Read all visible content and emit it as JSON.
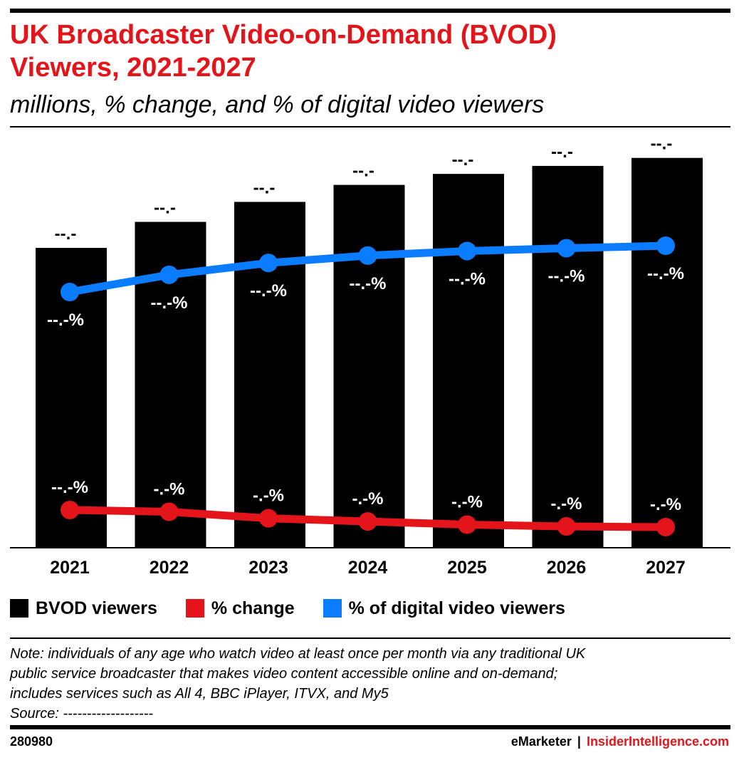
{
  "title_line1": "UK Broadcaster Video-on-Demand (BVOD)",
  "title_line2": "Viewers, 2021-2027",
  "subtitle": "millions, % change, and % of digital video viewers",
  "chart_data": {
    "type": "bar",
    "categories": [
      "2021",
      "2022",
      "2023",
      "2024",
      "2025",
      "2026",
      "2027"
    ],
    "ylim": [
      0,
      45
    ],
    "grid": false,
    "legend_position": "bottom",
    "series": [
      {
        "name": "BVOD viewers",
        "type": "bar",
        "color": "#000000",
        "values": [
          30.0,
          32.6,
          34.6,
          36.3,
          37.4,
          38.2,
          39.0
        ],
        "labels": [
          "--.-",
          "--.-",
          "--.-",
          "--.-",
          "--.-",
          "--.-",
          "--.-"
        ]
      },
      {
        "name": "% of digital video viewers",
        "type": "line",
        "color": "#0a7cff",
        "values": [
          80.0,
          84.2,
          87.1,
          88.9,
          90.0,
          90.7,
          91.3
        ],
        "labels": [
          "--.-%",
          "--.-%",
          "--.-%",
          "--.-%",
          "--.-%",
          "--.-%",
          "--.-%"
        ]
      },
      {
        "name": "% change",
        "type": "line",
        "color": "#e3151b",
        "values": [
          9.5,
          8.7,
          5.8,
          4.4,
          3.0,
          2.2,
          1.9
        ],
        "labels": [
          "--.-%",
          "-.-%",
          "-.-%",
          "-.-%",
          "-.-%",
          "-.-%",
          "-.-%"
        ]
      }
    ]
  },
  "legend": [
    {
      "label": "BVOD viewers",
      "color": "#000000"
    },
    {
      "label": "% change",
      "color": "#e3151b"
    },
    {
      "label": "% of digital video viewers",
      "color": "#0a7cff"
    }
  ],
  "note": {
    "line1": "Note: individuals of any age who watch video at least once per month via any traditional UK",
    "line2": "public service broadcaster that makes video content accessible online and on-demand;",
    "line3": "includes services such as All 4, BBC iPlayer, ITVX, and My5",
    "source": "Source: -------------------"
  },
  "footer": {
    "chart_id": "280980",
    "brand1": "eMarketer",
    "separator": "|",
    "brand2": "InsiderIntelligence.com",
    "brand2_color": "#e3151b"
  }
}
